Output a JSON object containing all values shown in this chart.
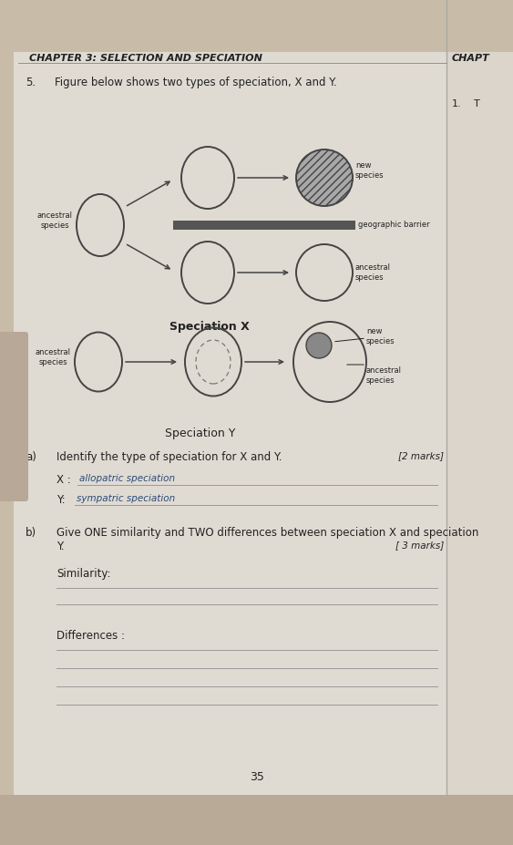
{
  "bg_outer": "#c8bba8",
  "bg_page": "#e0dbd2",
  "bg_page2": "#dbd5cc",
  "chapter_title": "CHAPTER 3: SELECTION AND SPECIATION",
  "chap_right": "CHAPT",
  "right_num": "1.",
  "right_T": "T",
  "question_num": "5.",
  "question_text": "Figure below shows two types of speciation, X and Y.",
  "speciation_x_label": "Speciation X",
  "speciation_y_label": "Speciation Y",
  "geographic_barrier": "geographic barrier",
  "part_a_label": "a)",
  "part_a_text": "Identify the type of speciation for X and Y.",
  "part_a_marks": "[2 marks]",
  "x_label": "X :",
  "x_answer": "allopatric speciation",
  "y_label": "Y:",
  "y_answer": "sympatric speciation",
  "part_b_label": "b)",
  "part_b_text1": "Give ONE similarity and TWO differences between speciation X and speciation",
  "part_b_text2": "Y.",
  "part_b_marks": "[ 3 marks]",
  "similarity_label": "Similarity:",
  "differences_label": "Differences :",
  "page_num": "35",
  "line_color": "#999999",
  "text_color": "#222222",
  "handwriting_color": "#2a4a7a",
  "circle_edge": "#444444",
  "barrier_color": "#555555",
  "shaded_color": "#909090",
  "thumb_color": "#b8a898"
}
